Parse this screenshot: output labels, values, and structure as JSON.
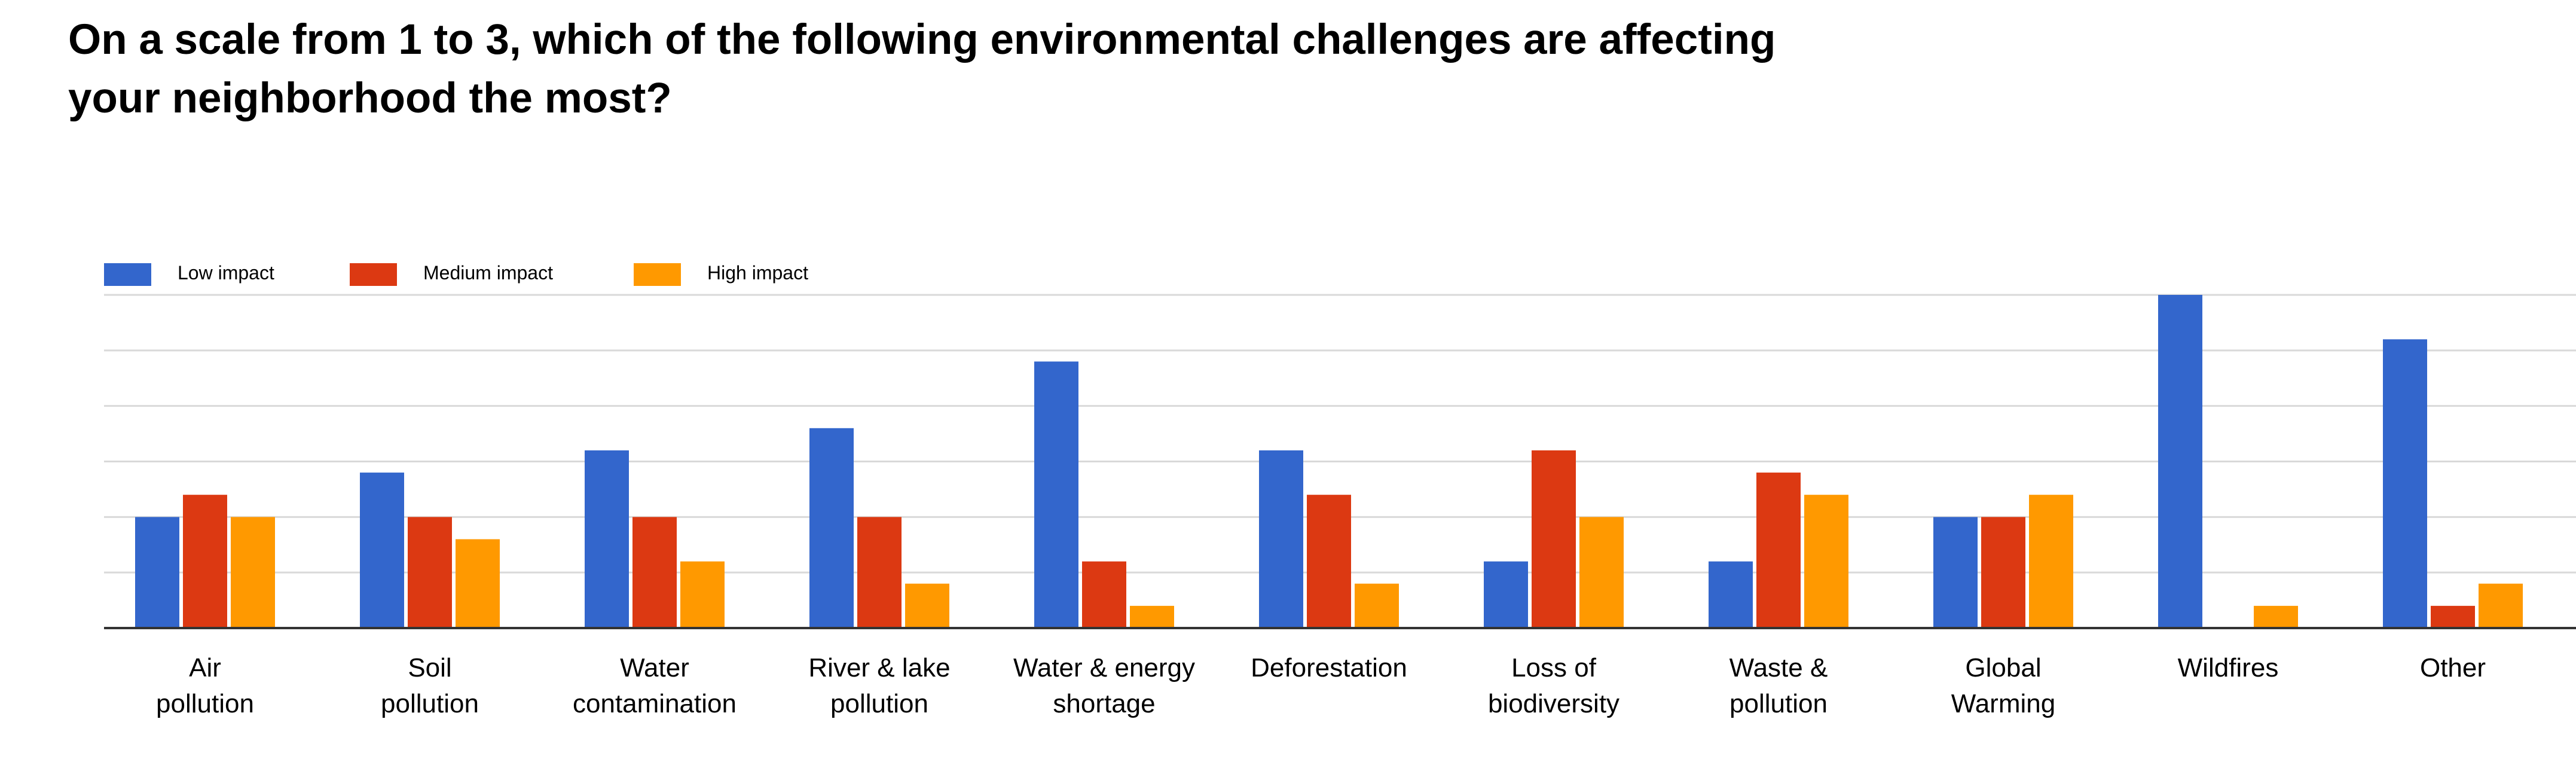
{
  "chart_data": {
    "type": "bar",
    "title": [
      "On a scale from 1 to 3, which of the following environmental challenges are affecting",
      "your neighborhood the most?"
    ],
    "xlabel": "",
    "ylabel": "",
    "ylim": [
      0,
      15
    ],
    "grid": true,
    "legend_position": "top-left",
    "categories": [
      [
        "Air",
        "pollution"
      ],
      [
        "Soil",
        "pollution"
      ],
      [
        "Water",
        "contamination"
      ],
      [
        "River & lake",
        "pollution"
      ],
      [
        "Water & energy",
        "shortage"
      ],
      [
        "Deforestation"
      ],
      [
        "Loss of",
        "biodiversity"
      ],
      [
        "Waste &",
        "pollution"
      ],
      [
        "Global",
        "Warming"
      ],
      [
        "Wildfires"
      ],
      [
        "Other"
      ]
    ],
    "series": [
      {
        "name": "Low impact",
        "color": "#3366cc",
        "values": [
          5,
          7,
          8,
          9,
          12,
          8,
          3,
          3,
          5,
          15,
          13
        ]
      },
      {
        "name": "Medium impact",
        "color": "#dc3912",
        "values": [
          6,
          5,
          5,
          5,
          3,
          6,
          8,
          7,
          5,
          0,
          1
        ]
      },
      {
        "name": "High impact",
        "color": "#ff9900",
        "values": [
          5,
          4,
          3,
          2,
          1,
          2,
          5,
          6,
          6,
          1,
          2
        ]
      }
    ]
  }
}
